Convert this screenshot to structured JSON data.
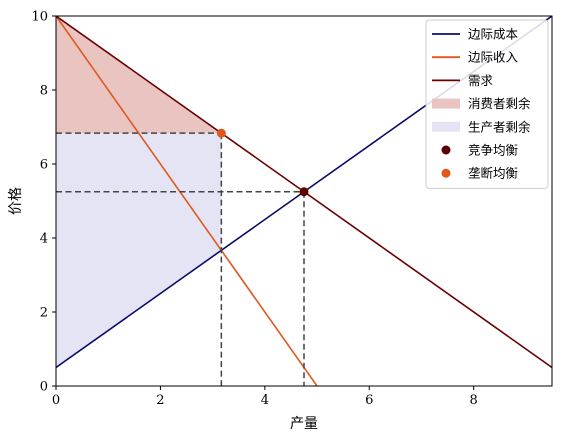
{
  "chart_data": {
    "type": "line",
    "title": "",
    "xlabel": "产量",
    "ylabel": "价格",
    "xlim": [
      0,
      9.5
    ],
    "ylim": [
      0,
      10
    ],
    "x_ticks": [
      0,
      2,
      4,
      6,
      8
    ],
    "y_ticks": [
      0,
      2,
      4,
      6,
      8,
      10
    ],
    "grid": false,
    "legend_position": "top-right",
    "series": [
      {
        "name": "边际成本",
        "kind": "line",
        "color": "#0b0b6b",
        "x": [
          0,
          9.5
        ],
        "y": [
          0.5,
          10
        ]
      },
      {
        "name": "边际收入",
        "kind": "line",
        "color": "#e0581c",
        "x": [
          0,
          5.0
        ],
        "y": [
          10,
          0
        ]
      },
      {
        "name": "需求",
        "kind": "line",
        "color": "#6b0000",
        "x": [
          0,
          9.5
        ],
        "y": [
          10,
          0.5
        ]
      }
    ],
    "areas": [
      {
        "name": "消费者剩余",
        "color": "#e9c4c0",
        "x": [
          0,
          3.167
        ],
        "y_upper": [
          10,
          6.833
        ],
        "y_lower": 6.833
      },
      {
        "name": "生产者剩余",
        "color": "#e4e4f4",
        "x": [
          0,
          3.167
        ],
        "y_upper": 6.833,
        "y_lower": [
          0.5,
          3.667
        ]
      }
    ],
    "points": [
      {
        "name": "竞争均衡",
        "color": "#5a0000",
        "x": 4.75,
        "y": 5.25
      },
      {
        "name": "垄断均衡",
        "color": "#e0581c",
        "x": 3.167,
        "y": 6.833
      }
    ],
    "reference_lines": [
      {
        "style": "dashed",
        "color": "#444444",
        "from": [
          0,
          6.833
        ],
        "to": [
          3.167,
          6.833
        ]
      },
      {
        "style": "dashed",
        "color": "#444444",
        "from": [
          3.167,
          6.833
        ],
        "to": [
          3.167,
          0
        ]
      },
      {
        "style": "dashed",
        "color": "#444444",
        "from": [
          0,
          5.25
        ],
        "to": [
          4.75,
          5.25
        ]
      },
      {
        "style": "dashed",
        "color": "#444444",
        "from": [
          4.75,
          5.25
        ],
        "to": [
          4.75,
          0
        ]
      }
    ],
    "legend": [
      {
        "label": "边际成本",
        "kind": "line",
        "color": "#0b0b6b"
      },
      {
        "label": "边际收入",
        "kind": "line",
        "color": "#e0581c"
      },
      {
        "label": "需求",
        "kind": "line",
        "color": "#6b0000"
      },
      {
        "label": "消费者剩余",
        "kind": "patch",
        "color": "#e9c4c0"
      },
      {
        "label": "生产者剩余",
        "kind": "patch",
        "color": "#e4e4f4"
      },
      {
        "label": "竞争均衡",
        "kind": "marker",
        "color": "#5a0000"
      },
      {
        "label": "垄断均衡",
        "kind": "marker",
        "color": "#e0581c"
      }
    ]
  }
}
